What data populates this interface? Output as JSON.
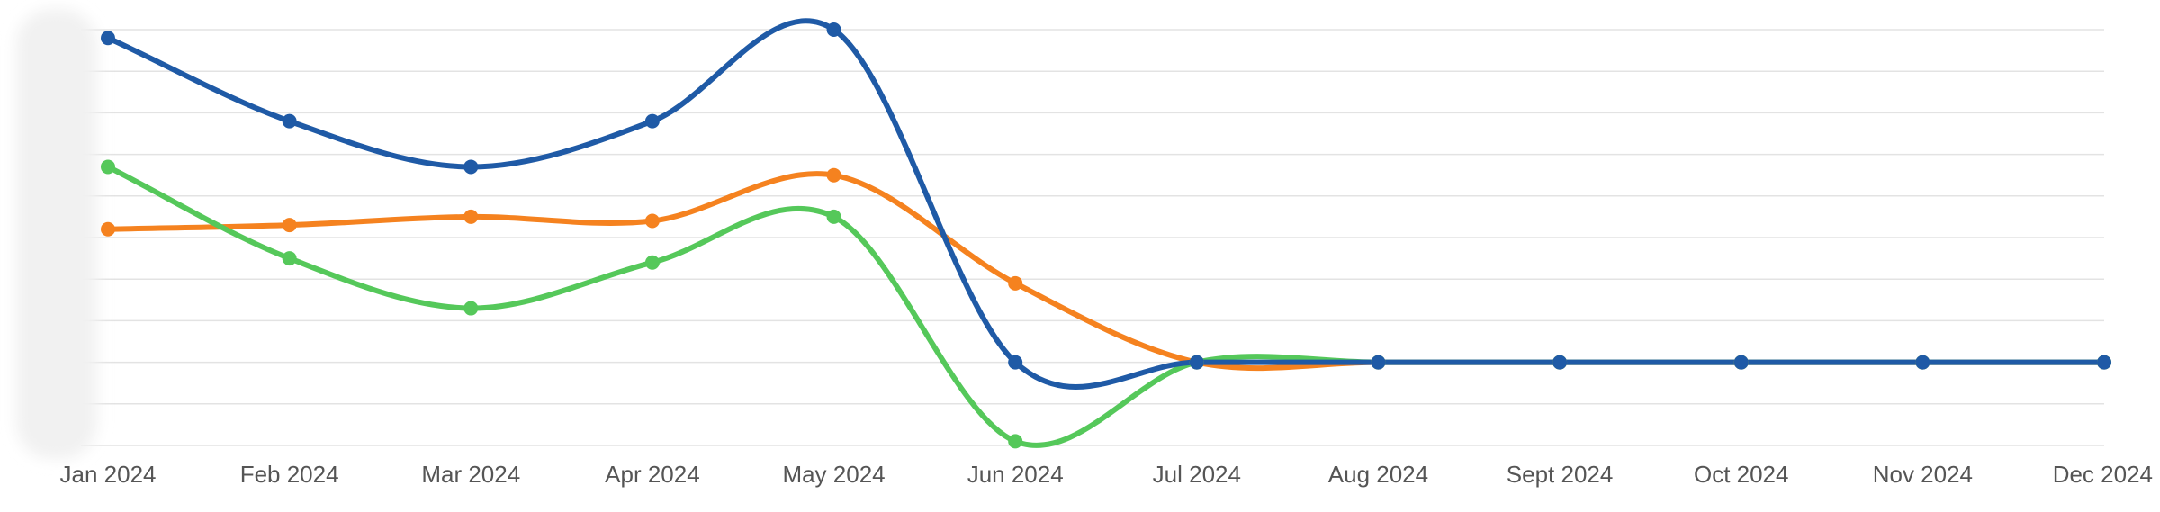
{
  "chart_data": {
    "type": "line",
    "title": "",
    "xlabel": "",
    "ylabel": "",
    "categories": [
      "Jan 2024",
      "Feb 2024",
      "Mar 2024",
      "Apr 2024",
      "May 2024",
      "Jun 2024",
      "Jul 2024",
      "Aug 2024",
      "Sept 2024",
      "Oct 2024",
      "Nov 2024",
      "Dec 2024"
    ],
    "ylim": [
      0,
      10
    ],
    "y_gridlines": 11,
    "y_tick_labels_visible": false,
    "smooth": true,
    "grid": true,
    "legend": "none",
    "series": [
      {
        "color": "#1f5aa6",
        "values": [
          9.8,
          7.8,
          6.7,
          7.8,
          10.0,
          2.0,
          2.0,
          2.0,
          2.0,
          2.0,
          2.0,
          2.0
        ]
      },
      {
        "color": "#f5821f",
        "values": [
          5.2,
          5.3,
          5.5,
          5.4,
          6.5,
          3.9,
          2.0,
          2.0,
          2.0,
          2.0,
          2.0,
          2.0
        ]
      },
      {
        "color": "#55c85a",
        "values": [
          6.7,
          4.5,
          3.3,
          4.4,
          5.5,
          0.1,
          2.0,
          2.0,
          2.0,
          2.0,
          2.0,
          2.0
        ]
      }
    ]
  }
}
